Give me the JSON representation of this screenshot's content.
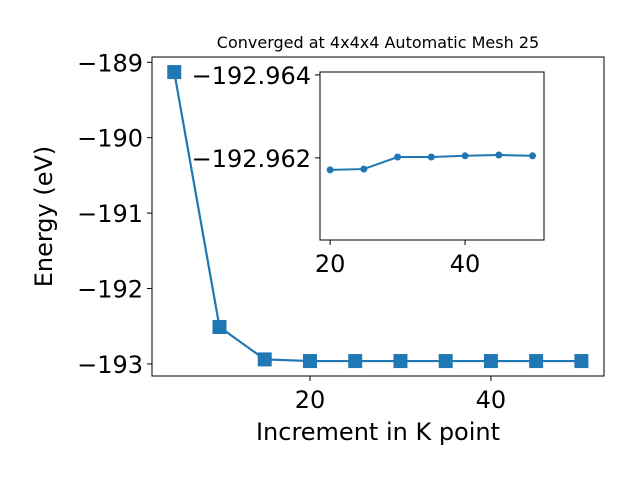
{
  "chart_data": [
    {
      "type": "line",
      "title": "Converged at 4x4x4 Automatic Mesh 25",
      "x_label": "Increment in K point",
      "y_label": "Energy (eV)",
      "x": [
        5,
        10,
        15,
        20,
        25,
        30,
        35,
        40,
        45,
        50
      ],
      "series": [
        {
          "color": "#1f77b4",
          "marker": "square",
          "values": [
            -189.13,
            -192.51,
            -192.94,
            -192.962,
            -192.962,
            -192.962,
            -192.962,
            -192.962,
            -192.962,
            -192.962
          ]
        }
      ],
      "xlim": [
        2.54,
        52.5
      ],
      "ylim": [
        -193.16,
        -188.93
      ],
      "xticks": [
        20,
        40
      ],
      "yticks": [
        {
          "value": -189,
          "label": "−189"
        },
        {
          "value": -190,
          "label": "−190"
        },
        {
          "value": -191,
          "label": "−191"
        },
        {
          "value": -192,
          "label": "−192"
        },
        {
          "value": -193,
          "label": "−193"
        }
      ]
    },
    {
      "type": "line",
      "x": [
        20,
        25,
        30,
        35,
        40,
        45,
        50
      ],
      "series": [
        {
          "color": "#1f77b4",
          "marker": "circle",
          "values": [
            -192.96171,
            -192.96173,
            -192.96202,
            -192.96202,
            -192.96205,
            -192.96207,
            -192.96205
          ]
        }
      ],
      "xlim": [
        18.5,
        51.7
      ],
      "ylim": [
        -192.96002,
        -192.96407
      ],
      "xticks": [
        20,
        40
      ],
      "yticks": [
        {
          "value": -192.964,
          "label": "−192.964"
        },
        {
          "value": -192.962,
          "label": "−192.962"
        }
      ]
    }
  ]
}
